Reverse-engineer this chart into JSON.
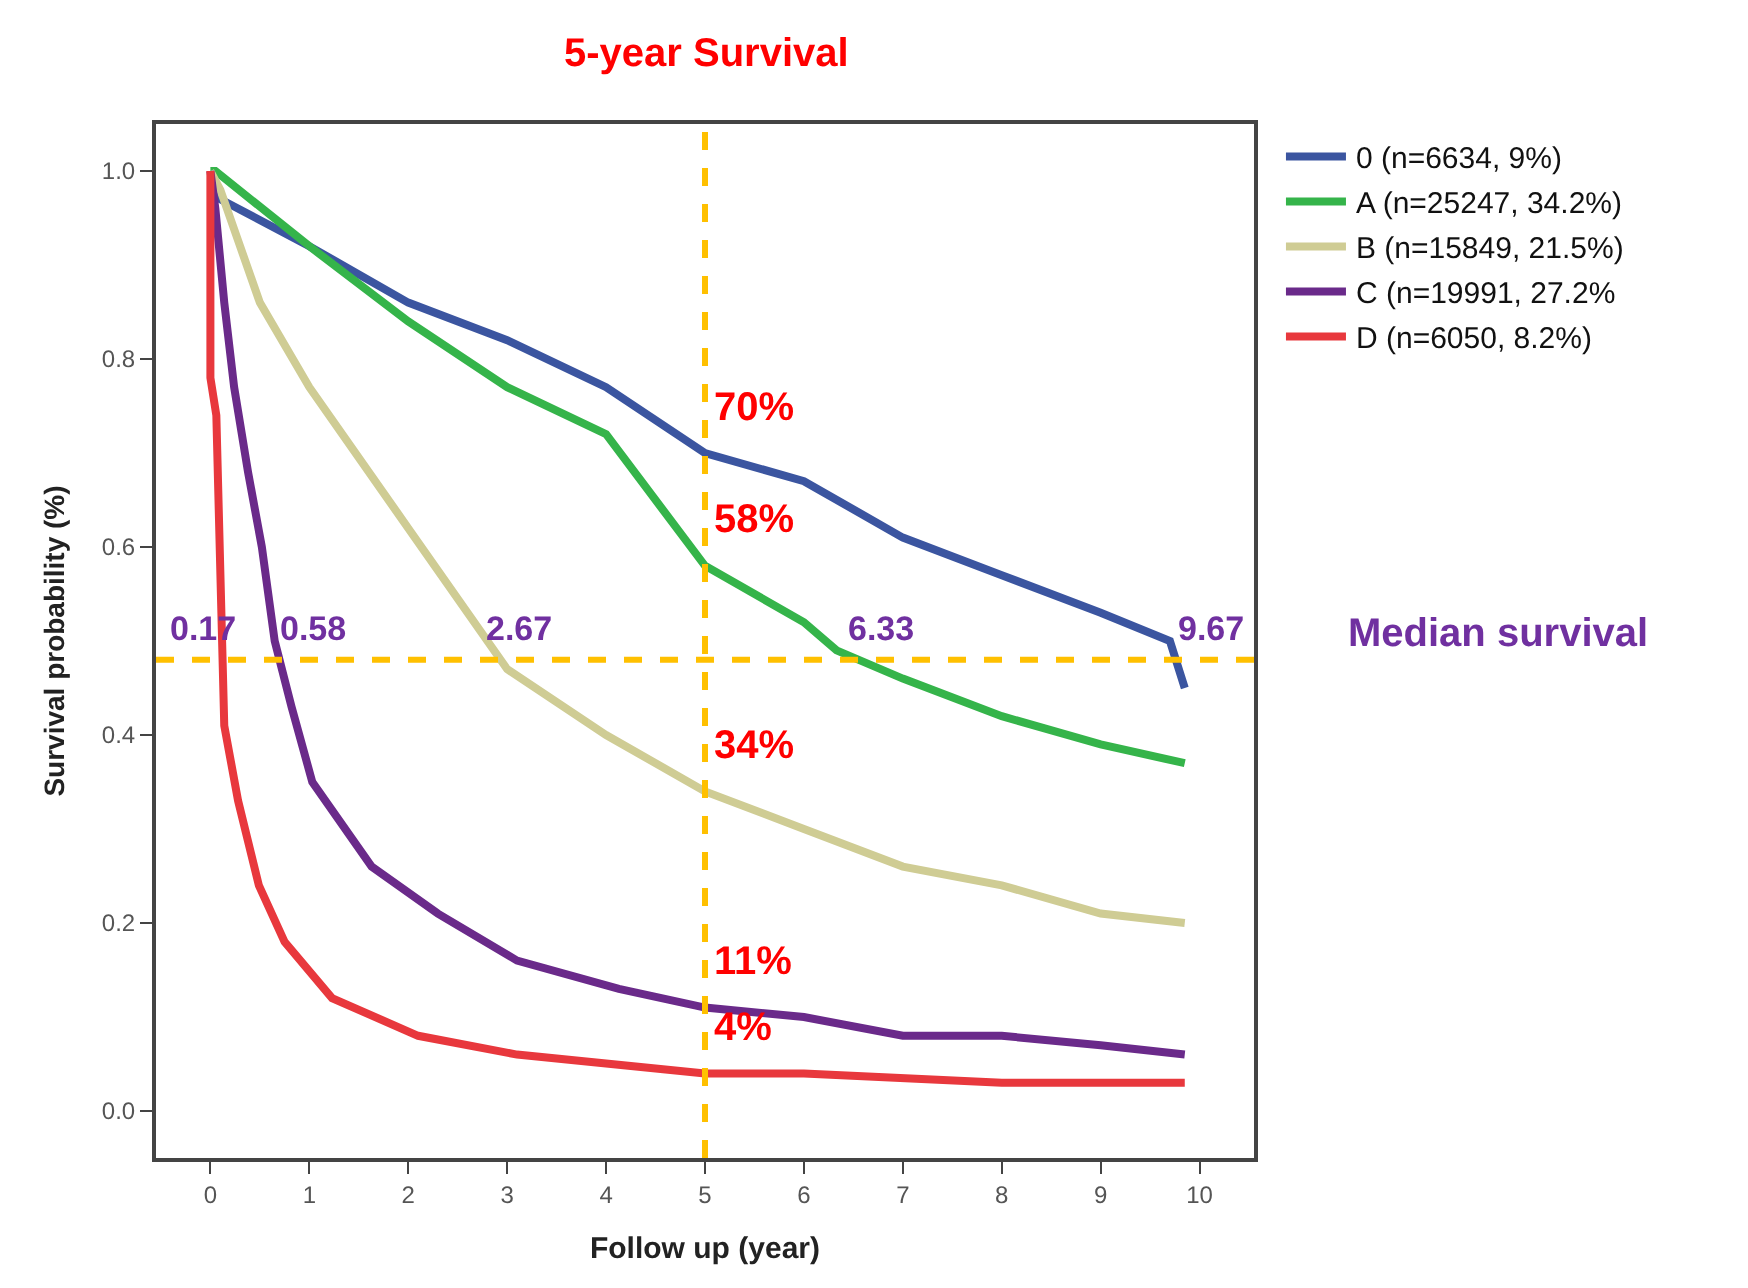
{
  "chart_data": {
    "type": "line",
    "xlabel": "Follow up (year)",
    "ylabel": "Survival probability (%)",
    "xlim": [
      -0.55,
      10.55
    ],
    "ylim": [
      -0.05,
      1.05
    ],
    "xticks": [
      0,
      1,
      2,
      3,
      4,
      5,
      6,
      7,
      8,
      9,
      10
    ],
    "yticks": [
      {
        "value": 0,
        "label": "0.0"
      },
      {
        "value": 0.2,
        "label": "0.2"
      },
      {
        "value": 0.4,
        "label": "0.4"
      },
      {
        "value": 0.6,
        "label": "0.6"
      },
      {
        "value": 0.8,
        "label": "0.8"
      },
      {
        "value": 1,
        "label": "1.0"
      }
    ],
    "grid": false,
    "legend": "top right",
    "marker": "none",
    "line_style": "solid",
    "series": [
      {
        "name": "0 (n=6634, 9%)",
        "color": "#3b55a0",
        "x": [
          0,
          0.1,
          1,
          2,
          3,
          4,
          5,
          6,
          7,
          8,
          9,
          9.7,
          9.85
        ],
        "values": [
          1.0,
          0.97,
          0.92,
          0.86,
          0.82,
          0.77,
          0.7,
          0.67,
          0.61,
          0.57,
          0.53,
          0.5,
          0.45
        ]
      },
      {
        "name": "A (n=25247, 34.2%)",
        "color": "#35b44a",
        "x": [
          0,
          0.05,
          1,
          2,
          3,
          4,
          5,
          6,
          6.33,
          7,
          8,
          9,
          9.85
        ],
        "values": [
          1.0,
          1.0,
          0.92,
          0.84,
          0.77,
          0.72,
          0.58,
          0.52,
          0.49,
          0.46,
          0.42,
          0.39,
          0.37
        ]
      },
      {
        "name": "B (n=15849, 21.5%)",
        "color": "#cfcc94",
        "x": [
          0,
          0.1,
          0.5,
          1,
          2,
          3,
          4,
          5,
          6,
          7,
          8,
          9,
          9.85
        ],
        "values": [
          1.0,
          0.98,
          0.86,
          0.77,
          0.62,
          0.47,
          0.4,
          0.34,
          0.3,
          0.26,
          0.24,
          0.21,
          0.2
        ]
      },
      {
        "name": "C (n=19991, 27.2%",
        "color": "#6a2a8a",
        "x": [
          0,
          0.05,
          0.14,
          0.24,
          0.38,
          0.52,
          0.65,
          0.82,
          1.03,
          1.63,
          2.3,
          3.1,
          4.13,
          5,
          6,
          7,
          8,
          9,
          9.85
        ],
        "values": [
          1.0,
          0.96,
          0.86,
          0.77,
          0.68,
          0.6,
          0.5,
          0.43,
          0.35,
          0.26,
          0.21,
          0.16,
          0.13,
          0.11,
          0.1,
          0.08,
          0.08,
          0.07,
          0.06
        ]
      },
      {
        "name": "D (n=6050, 8.2%)",
        "color": "#e8383d",
        "x": [
          0,
          0.0,
          0.06,
          0.14,
          0.28,
          0.49,
          0.75,
          1.23,
          2.1,
          3.1,
          5,
          6,
          8,
          9.85
        ],
        "values": [
          1.0,
          0.78,
          0.74,
          0.41,
          0.33,
          0.24,
          0.18,
          0.12,
          0.08,
          0.06,
          0.04,
          0.04,
          0.03,
          0.03
        ]
      }
    ],
    "ref_lines": [
      {
        "axis": "x",
        "value": 5,
        "label": "5-year Survival",
        "color": "#ffc000",
        "line_style": "dashed"
      },
      {
        "axis": "y",
        "value": 0.48,
        "label": "Median survival",
        "color": "#ffc000",
        "line_style": "dashed"
      }
    ],
    "annotations": [
      {
        "text": "70%",
        "x": 5,
        "y": 0.7
      },
      {
        "text": "58%",
        "x": 5,
        "y": 0.58
      },
      {
        "text": "34%",
        "x": 5,
        "y": 0.34
      },
      {
        "text": "11%",
        "x": 5,
        "y": 0.11
      },
      {
        "text": "4%",
        "x": 5,
        "y": 0.04
      },
      {
        "text": "0.17",
        "x": 0.17,
        "y": 0.48
      },
      {
        "text": "0.58",
        "x": 0.58,
        "y": 0.48
      },
      {
        "text": "2.67",
        "x": 2.67,
        "y": 0.48
      },
      {
        "text": "6.33",
        "x": 6.33,
        "y": 0.48
      },
      {
        "text": "9.67",
        "x": 9.67,
        "y": 0.48
      }
    ]
  }
}
